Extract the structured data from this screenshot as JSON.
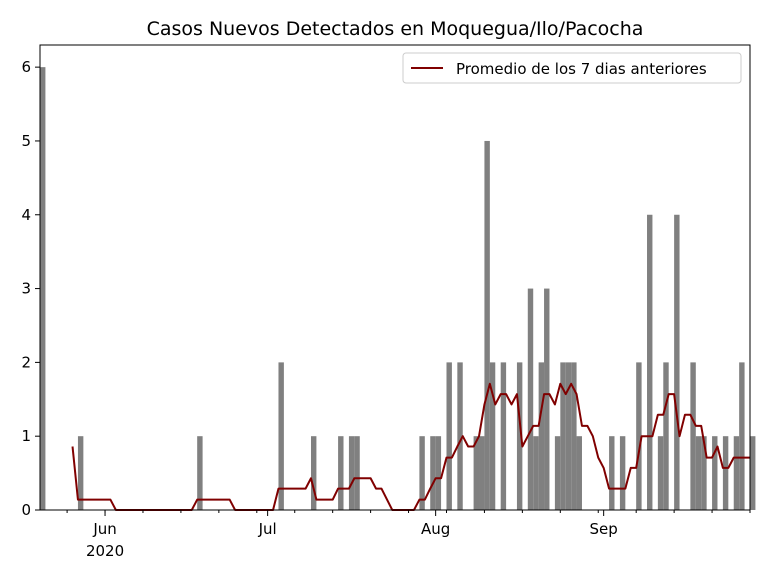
{
  "chart_data": {
    "type": "bar",
    "title": "Casos Nuevos Detectados en Moquegua/Ilo/Pacocha",
    "xlabel": "",
    "ylabel": "",
    "x_start": "2020-05-20",
    "x_end": "2020-09-28",
    "ylim": [
      0,
      6.3
    ],
    "yticks": [
      0,
      1,
      2,
      3,
      4,
      5,
      6
    ],
    "xticks": [
      {
        "date": "2020-06-01",
        "label": "Jun",
        "sublabel": "2020"
      },
      {
        "date": "2020-07-01",
        "label": "Jul",
        "sublabel": ""
      },
      {
        "date": "2020-08-01",
        "label": "Aug",
        "sublabel": ""
      },
      {
        "date": "2020-09-01",
        "label": "Sep",
        "sublabel": ""
      }
    ],
    "grid": false,
    "legend_position": "top-right",
    "bar_color": "#808080",
    "line_color": "#800000",
    "series": [
      {
        "type": "bar",
        "points": [
          [
            "2020-05-20",
            6
          ],
          [
            "2020-05-27",
            1
          ],
          [
            "2020-06-18",
            1
          ],
          [
            "2020-07-03",
            2
          ],
          [
            "2020-07-09",
            1
          ],
          [
            "2020-07-14",
            1
          ],
          [
            "2020-07-16",
            1
          ],
          [
            "2020-07-17",
            1
          ],
          [
            "2020-07-29",
            1
          ],
          [
            "2020-07-31",
            1
          ],
          [
            "2020-08-01",
            1
          ],
          [
            "2020-08-03",
            2
          ],
          [
            "2020-08-05",
            2
          ],
          [
            "2020-08-08",
            1
          ],
          [
            "2020-08-09",
            1
          ],
          [
            "2020-08-10",
            5
          ],
          [
            "2020-08-11",
            2
          ],
          [
            "2020-08-13",
            2
          ],
          [
            "2020-08-16",
            2
          ],
          [
            "2020-08-18",
            3
          ],
          [
            "2020-08-19",
            1
          ],
          [
            "2020-08-20",
            2
          ],
          [
            "2020-08-21",
            3
          ],
          [
            "2020-08-23",
            1
          ],
          [
            "2020-08-24",
            2
          ],
          [
            "2020-08-25",
            2
          ],
          [
            "2020-08-26",
            2
          ],
          [
            "2020-08-27",
            1
          ],
          [
            "2020-09-02",
            1
          ],
          [
            "2020-09-04",
            1
          ],
          [
            "2020-09-07",
            2
          ],
          [
            "2020-09-09",
            4
          ],
          [
            "2020-09-11",
            1
          ],
          [
            "2020-09-12",
            2
          ],
          [
            "2020-09-14",
            4
          ],
          [
            "2020-09-17",
            2
          ],
          [
            "2020-09-18",
            1
          ],
          [
            "2020-09-19",
            1
          ],
          [
            "2020-09-21",
            1
          ],
          [
            "2020-09-23",
            1
          ],
          [
            "2020-09-25",
            1
          ],
          [
            "2020-09-26",
            2
          ],
          [
            "2020-09-28",
            1
          ]
        ]
      },
      {
        "type": "line",
        "name": "Promedio de los 7 dias anteriores",
        "points": [
          [
            "2020-05-26",
            0.86
          ],
          [
            "2020-05-27",
            0.14
          ],
          [
            "2020-06-02",
            0.14
          ],
          [
            "2020-06-03",
            0
          ],
          [
            "2020-06-17",
            0
          ],
          [
            "2020-06-18",
            0.14
          ],
          [
            "2020-06-24",
            0.14
          ],
          [
            "2020-06-25",
            0
          ],
          [
            "2020-07-02",
            0
          ],
          [
            "2020-07-03",
            0.29
          ],
          [
            "2020-07-08",
            0.29
          ],
          [
            "2020-07-09",
            0.43
          ],
          [
            "2020-07-10",
            0.14
          ],
          [
            "2020-07-13",
            0.14
          ],
          [
            "2020-07-14",
            0.29
          ],
          [
            "2020-07-16",
            0.29
          ],
          [
            "2020-07-17",
            0.43
          ],
          [
            "2020-07-20",
            0.43
          ],
          [
            "2020-07-21",
            0.29
          ],
          [
            "2020-07-22",
            0.29
          ],
          [
            "2020-07-24",
            0
          ],
          [
            "2020-07-28",
            0
          ],
          [
            "2020-07-29",
            0.14
          ],
          [
            "2020-07-30",
            0.14
          ],
          [
            "2020-07-31",
            0.29
          ],
          [
            "2020-08-01",
            0.43
          ],
          [
            "2020-08-02",
            0.43
          ],
          [
            "2020-08-03",
            0.71
          ],
          [
            "2020-08-04",
            0.71
          ],
          [
            "2020-08-05",
            0.86
          ],
          [
            "2020-08-06",
            1.0
          ],
          [
            "2020-08-07",
            0.86
          ],
          [
            "2020-08-08",
            0.86
          ],
          [
            "2020-08-09",
            1.0
          ],
          [
            "2020-08-10",
            1.43
          ],
          [
            "2020-08-11",
            1.71
          ],
          [
            "2020-08-12",
            1.43
          ],
          [
            "2020-08-13",
            1.57
          ],
          [
            "2020-08-14",
            1.57
          ],
          [
            "2020-08-15",
            1.43
          ],
          [
            "2020-08-16",
            1.57
          ],
          [
            "2020-08-17",
            0.86
          ],
          [
            "2020-08-18",
            1.0
          ],
          [
            "2020-08-19",
            1.14
          ],
          [
            "2020-08-20",
            1.14
          ],
          [
            "2020-08-21",
            1.57
          ],
          [
            "2020-08-22",
            1.57
          ],
          [
            "2020-08-23",
            1.43
          ],
          [
            "2020-08-24",
            1.71
          ],
          [
            "2020-08-25",
            1.57
          ],
          [
            "2020-08-26",
            1.71
          ],
          [
            "2020-08-27",
            1.57
          ],
          [
            "2020-08-28",
            1.14
          ],
          [
            "2020-08-29",
            1.14
          ],
          [
            "2020-08-30",
            1.0
          ],
          [
            "2020-08-31",
            0.71
          ],
          [
            "2020-09-01",
            0.57
          ],
          [
            "2020-09-02",
            0.29
          ],
          [
            "2020-09-05",
            0.29
          ],
          [
            "2020-09-06",
            0.57
          ],
          [
            "2020-09-07",
            0.57
          ],
          [
            "2020-09-08",
            1.0
          ],
          [
            "2020-09-10",
            1.0
          ],
          [
            "2020-09-11",
            1.29
          ],
          [
            "2020-09-12",
            1.29
          ],
          [
            "2020-09-13",
            1.57
          ],
          [
            "2020-09-14",
            1.57
          ],
          [
            "2020-09-15",
            1.0
          ],
          [
            "2020-09-16",
            1.29
          ],
          [
            "2020-09-17",
            1.29
          ],
          [
            "2020-09-18",
            1.14
          ],
          [
            "2020-09-19",
            1.14
          ],
          [
            "2020-09-20",
            0.71
          ],
          [
            "2020-09-21",
            0.71
          ],
          [
            "2020-09-22",
            0.86
          ],
          [
            "2020-09-23",
            0.57
          ],
          [
            "2020-09-24",
            0.57
          ],
          [
            "2020-09-25",
            0.71
          ],
          [
            "2020-09-28",
            0.71
          ]
        ]
      }
    ]
  }
}
